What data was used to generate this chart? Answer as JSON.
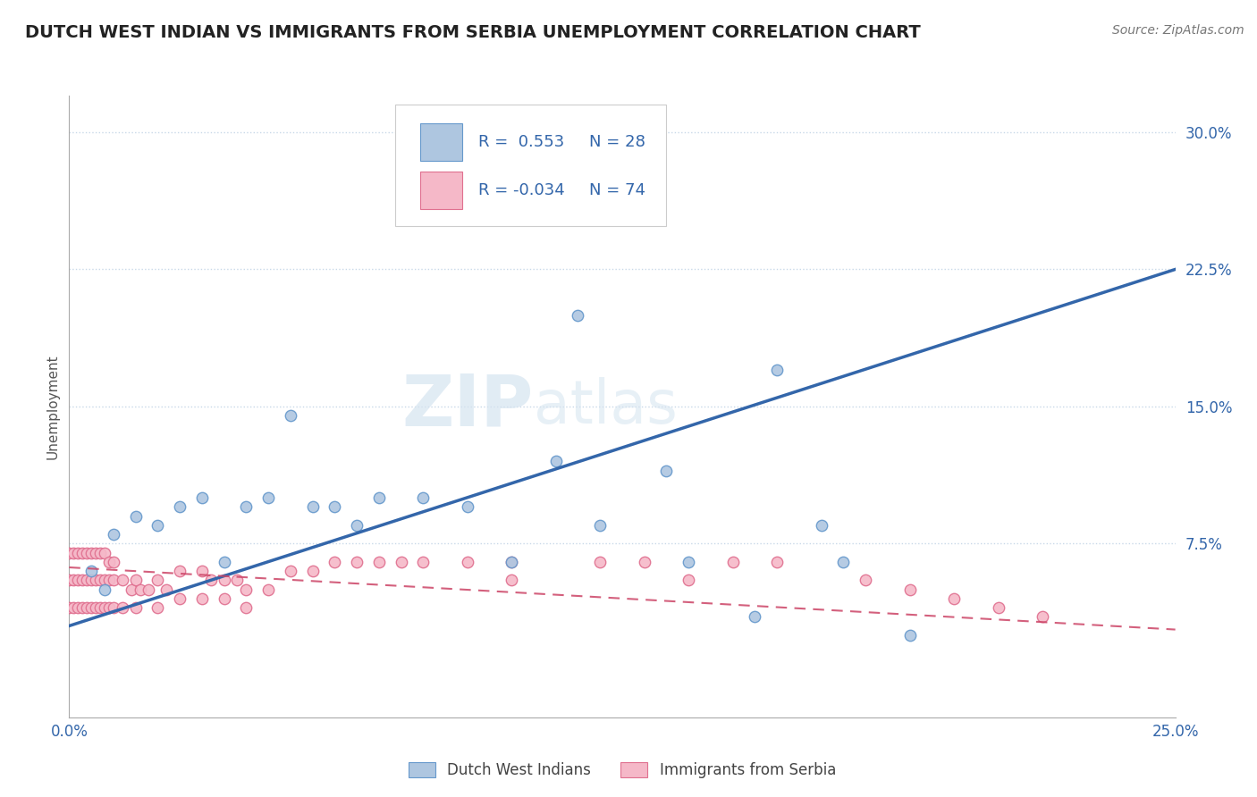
{
  "title": "DUTCH WEST INDIAN VS IMMIGRANTS FROM SERBIA UNEMPLOYMENT CORRELATION CHART",
  "source_text": "Source: ZipAtlas.com",
  "ylabel": "Unemployment",
  "xlim": [
    0.0,
    0.25
  ],
  "ylim": [
    -0.02,
    0.32
  ],
  "series1_name": "Dutch West Indians",
  "series1_color": "#aec6e0",
  "series1_edge_color": "#6699cc",
  "series1_line_color": "#3366aa",
  "series1_R": 0.553,
  "series1_N": 28,
  "series1_x": [
    0.005,
    0.008,
    0.01,
    0.015,
    0.02,
    0.025,
    0.03,
    0.035,
    0.04,
    0.045,
    0.05,
    0.055,
    0.06,
    0.065,
    0.07,
    0.08,
    0.09,
    0.1,
    0.11,
    0.115,
    0.12,
    0.135,
    0.14,
    0.155,
    0.16,
    0.17,
    0.175,
    0.19
  ],
  "series1_y": [
    0.06,
    0.05,
    0.08,
    0.09,
    0.085,
    0.095,
    0.1,
    0.065,
    0.095,
    0.1,
    0.145,
    0.095,
    0.095,
    0.085,
    0.1,
    0.1,
    0.095,
    0.065,
    0.12,
    0.2,
    0.085,
    0.115,
    0.065,
    0.035,
    0.17,
    0.085,
    0.065,
    0.025
  ],
  "series2_name": "Immigrants from Serbia",
  "series2_color": "#f5b8c8",
  "series2_edge_color": "#e07090",
  "series2_line_color": "#cc4466",
  "series2_R": -0.034,
  "series2_N": 74,
  "series2_x": [
    0.0,
    0.0,
    0.0,
    0.001,
    0.001,
    0.001,
    0.002,
    0.002,
    0.002,
    0.003,
    0.003,
    0.003,
    0.004,
    0.004,
    0.004,
    0.005,
    0.005,
    0.005,
    0.006,
    0.006,
    0.006,
    0.007,
    0.007,
    0.007,
    0.008,
    0.008,
    0.008,
    0.009,
    0.009,
    0.009,
    0.01,
    0.01,
    0.01,
    0.012,
    0.012,
    0.014,
    0.015,
    0.015,
    0.016,
    0.018,
    0.02,
    0.02,
    0.022,
    0.025,
    0.025,
    0.03,
    0.03,
    0.032,
    0.035,
    0.035,
    0.038,
    0.04,
    0.04,
    0.045,
    0.05,
    0.055,
    0.06,
    0.065,
    0.07,
    0.075,
    0.08,
    0.09,
    0.1,
    0.1,
    0.12,
    0.13,
    0.14,
    0.15,
    0.16,
    0.18,
    0.19,
    0.2,
    0.21,
    0.22
  ],
  "series2_y": [
    0.04,
    0.055,
    0.07,
    0.04,
    0.055,
    0.07,
    0.04,
    0.055,
    0.07,
    0.04,
    0.055,
    0.07,
    0.04,
    0.055,
    0.07,
    0.04,
    0.055,
    0.07,
    0.04,
    0.055,
    0.07,
    0.04,
    0.055,
    0.07,
    0.04,
    0.055,
    0.07,
    0.04,
    0.055,
    0.065,
    0.04,
    0.055,
    0.065,
    0.04,
    0.055,
    0.05,
    0.04,
    0.055,
    0.05,
    0.05,
    0.04,
    0.055,
    0.05,
    0.045,
    0.06,
    0.06,
    0.045,
    0.055,
    0.055,
    0.045,
    0.055,
    0.05,
    0.04,
    0.05,
    0.06,
    0.06,
    0.065,
    0.065,
    0.065,
    0.065,
    0.065,
    0.065,
    0.065,
    0.055,
    0.065,
    0.065,
    0.055,
    0.065,
    0.065,
    0.055,
    0.05,
    0.045,
    0.04,
    0.035
  ],
  "trend1_x": [
    0.0,
    0.25
  ],
  "trend1_y": [
    0.03,
    0.225
  ],
  "trend2_x": [
    0.0,
    0.25
  ],
  "trend2_y": [
    0.062,
    0.028
  ],
  "watermark_text": "ZIPatlas",
  "background_color": "#ffffff",
  "grid_color": "#c8d8e8",
  "title_fontsize": 14,
  "axis_label_fontsize": 11,
  "tick_fontsize": 12,
  "marker_size": 80
}
